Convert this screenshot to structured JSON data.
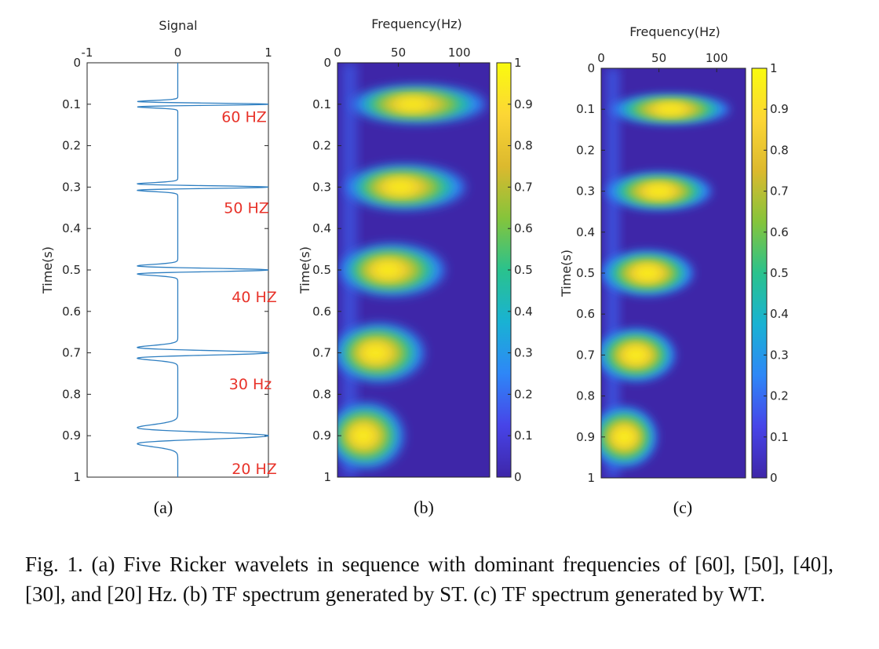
{
  "figure": {
    "caption": "Fig. 1.    (a) Five Ricker wavelets in sequence with dominant frequencies of [60], [50], [40], [30], and [20] Hz. (b) TF spectrum generated by ST. (c) TF spectrum generated by WT.",
    "panel_labels": [
      "(a)",
      "(b)",
      "(c)"
    ],
    "annotations": [
      "60 HZ",
      "50 HZ",
      "40 HZ",
      "30 Hz",
      "20 HZ"
    ],
    "colormap": [
      "#3e26a8",
      "#4744e8",
      "#2e87f7",
      "#19b2d3",
      "#2ac28d",
      "#85c43b",
      "#dcb92e",
      "#fcd635",
      "#f9fb0e"
    ]
  },
  "chart_data": [
    {
      "type": "line",
      "panel": "(a)",
      "title": "Signal",
      "ylabel": "Time(s)",
      "xlim": [
        -1,
        1
      ],
      "ylim": [
        0,
        1
      ],
      "x_ticks": [
        "-1",
        "0",
        "1"
      ],
      "y_ticks": [
        "0",
        "0.1",
        "0.2",
        "0.3",
        "0.4",
        "0.5",
        "0.6",
        "0.7",
        "0.8",
        "0.9",
        "1"
      ],
      "wavelets": [
        {
          "time": 0.1,
          "dominant_frequency_hz": 60,
          "amplitude": 1
        },
        {
          "time": 0.3,
          "dominant_frequency_hz": 50,
          "amplitude": 1
        },
        {
          "time": 0.5,
          "dominant_frequency_hz": 40,
          "amplitude": 1
        },
        {
          "time": 0.7,
          "dominant_frequency_hz": 30,
          "amplitude": 1
        },
        {
          "time": 0.9,
          "dominant_frequency_hz": 20,
          "amplitude": 1
        }
      ]
    },
    {
      "type": "heatmap",
      "panel": "(b)",
      "title": "Frequency(Hz)",
      "ylabel": "Time(s)",
      "xlim": [
        0,
        125
      ],
      "ylim": [
        0,
        1
      ],
      "x_ticks": [
        "0",
        "50",
        "100"
      ],
      "y_ticks": [
        "0",
        "0.1",
        "0.2",
        "0.3",
        "0.4",
        "0.5",
        "0.6",
        "0.7",
        "0.8",
        "0.9",
        "1"
      ],
      "colorbar_ticks": [
        "0",
        "0.1",
        "0.2",
        "0.3",
        "0.4",
        "0.5",
        "0.6",
        "0.7",
        "0.8",
        "0.9",
        "1"
      ],
      "peaks": [
        {
          "time": 0.1,
          "frequency_hz": 60,
          "value": 1.0
        },
        {
          "time": 0.3,
          "frequency_hz": 50,
          "value": 1.0
        },
        {
          "time": 0.5,
          "frequency_hz": 40,
          "value": 1.0
        },
        {
          "time": 0.7,
          "frequency_hz": 30,
          "value": 1.0
        },
        {
          "time": 0.9,
          "frequency_hz": 20,
          "value": 1.0
        }
      ]
    },
    {
      "type": "heatmap",
      "panel": "(c)",
      "title": "Frequency(Hz)",
      "ylabel": "Time(s)",
      "xlim": [
        0,
        125
      ],
      "ylim": [
        0,
        1
      ],
      "x_ticks": [
        "0",
        "50",
        "100"
      ],
      "y_ticks": [
        "0",
        "0.1",
        "0.2",
        "0.3",
        "0.4",
        "0.5",
        "0.6",
        "0.7",
        "0.8",
        "0.9",
        "1"
      ],
      "colorbar_ticks": [
        "0",
        "0.1",
        "0.2",
        "0.3",
        "0.4",
        "0.5",
        "0.6",
        "0.7",
        "0.8",
        "0.9",
        "1"
      ],
      "peaks": [
        {
          "time": 0.1,
          "frequency_hz": 60,
          "value": 1.0
        },
        {
          "time": 0.3,
          "frequency_hz": 50,
          "value": 1.0
        },
        {
          "time": 0.5,
          "frequency_hz": 40,
          "value": 1.0
        },
        {
          "time": 0.7,
          "frequency_hz": 30,
          "value": 1.0
        },
        {
          "time": 0.9,
          "frequency_hz": 20,
          "value": 1.0
        }
      ]
    }
  ]
}
